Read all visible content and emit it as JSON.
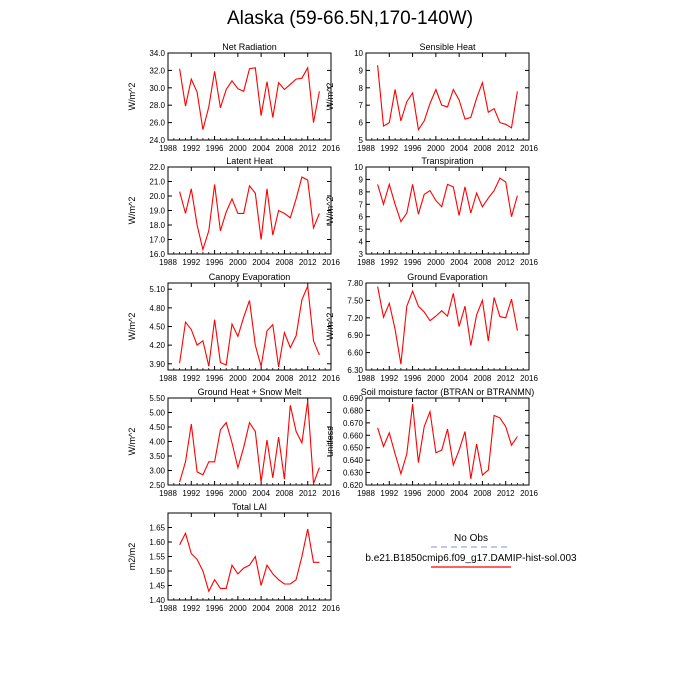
{
  "title": "Alaska (59-66.5N,170-140W)",
  "colors": {
    "line": "#ff0000",
    "obs": "#aab8e0",
    "axis": "#000000",
    "background": "#ffffff"
  },
  "legend": {
    "obs_label": "No Obs",
    "model_label": "b.e21.B1850cmip6.f09_g17.DAMIP-hist-sol.003"
  },
  "chart_data": [
    {
      "type": "line",
      "title": "Net Radiation",
      "ylabel": "W/m^2",
      "xlim": [
        1988,
        2016
      ],
      "ylim": [
        24.0,
        34.0
      ],
      "xticks": [
        1988,
        1992,
        1996,
        2000,
        2004,
        2008,
        2012,
        2016
      ],
      "xtick_labels": [
        "1988",
        "1992",
        "1996",
        "2000",
        "2004",
        "2008",
        "2012",
        "2016"
      ],
      "yticks": [
        24,
        26,
        28,
        30,
        32,
        34
      ],
      "ytick_labels": [
        "24.0",
        "26.0",
        "28.0",
        "30.0",
        "32.0",
        "34.0"
      ],
      "x": [
        1990,
        1991,
        1992,
        1993,
        1994,
        1995,
        1996,
        1997,
        1998,
        1999,
        2000,
        2001,
        2002,
        2003,
        2004,
        2005,
        2006,
        2007,
        2008,
        2009,
        2010,
        2011,
        2012,
        2013,
        2014
      ],
      "series": [
        {
          "values": [
            32.2,
            27.9,
            31.0,
            29.5,
            25.2,
            27.8,
            31.9,
            27.7,
            29.8,
            30.8,
            29.9,
            29.6,
            32.2,
            32.3,
            26.8,
            30.7,
            26.6,
            30.6,
            29.8,
            30.4,
            31.0,
            31.1,
            32.3,
            26.0,
            29.6
          ]
        }
      ]
    },
    {
      "type": "line",
      "title": "Sensible Heat",
      "ylabel": "W/m^2",
      "xlim": [
        1988,
        2016
      ],
      "ylim": [
        5,
        10
      ],
      "xticks": [
        1988,
        1992,
        1996,
        2000,
        2004,
        2008,
        2012,
        2016
      ],
      "xtick_labels": [
        "1988",
        "1992",
        "1996",
        "2000",
        "2004",
        "2008",
        "2012",
        "2016"
      ],
      "yticks": [
        5,
        6,
        7,
        8,
        9,
        10
      ],
      "ytick_labels": [
        "5",
        "6",
        "7",
        "8",
        "9",
        "10"
      ],
      "x": [
        1990,
        1991,
        1992,
        1993,
        1994,
        1995,
        1996,
        1997,
        1998,
        1999,
        2000,
        2001,
        2002,
        2003,
        2004,
        2005,
        2006,
        2007,
        2008,
        2009,
        2010,
        2011,
        2012,
        2013,
        2014
      ],
      "series": [
        {
          "values": [
            9.3,
            5.8,
            6.0,
            7.9,
            6.1,
            7.2,
            7.7,
            5.6,
            6.1,
            7.1,
            7.9,
            7.0,
            6.9,
            7.9,
            7.3,
            6.2,
            6.3,
            7.4,
            8.3,
            6.6,
            6.8,
            6.0,
            5.9,
            5.7,
            7.8
          ]
        }
      ]
    },
    {
      "type": "line",
      "title": "Latent Heat",
      "ylabel": "W/m^2",
      "xlim": [
        1988,
        2016
      ],
      "ylim": [
        16.0,
        22.0
      ],
      "xticks": [
        1988,
        1992,
        1996,
        2000,
        2004,
        2008,
        2012,
        2016
      ],
      "xtick_labels": [
        "1988",
        "1992",
        "1996",
        "2000",
        "2004",
        "2008",
        "2012",
        "2016"
      ],
      "yticks": [
        16,
        17,
        18,
        19,
        20,
        21,
        22
      ],
      "ytick_labels": [
        "16.0",
        "17.0",
        "18.0",
        "19.0",
        "20.0",
        "21.0",
        "22.0"
      ],
      "x": [
        1990,
        1991,
        1992,
        1993,
        1994,
        1995,
        1996,
        1997,
        1998,
        1999,
        2000,
        2001,
        2002,
        2003,
        2004,
        2005,
        2006,
        2007,
        2008,
        2009,
        2010,
        2011,
        2012,
        2013,
        2014
      ],
      "series": [
        {
          "values": [
            20.3,
            18.8,
            20.5,
            18.0,
            16.3,
            17.6,
            20.8,
            17.6,
            18.9,
            19.8,
            18.8,
            18.8,
            20.7,
            20.2,
            17.0,
            20.5,
            17.3,
            19.0,
            18.8,
            18.5,
            19.8,
            21.3,
            21.1,
            17.8,
            18.8
          ]
        }
      ]
    },
    {
      "type": "line",
      "title": "Transpiration",
      "ylabel": "W/m^2",
      "xlim": [
        1988,
        2016
      ],
      "ylim": [
        3,
        10
      ],
      "xticks": [
        1988,
        1992,
        1996,
        2000,
        2004,
        2008,
        2012,
        2016
      ],
      "xtick_labels": [
        "1988",
        "1992",
        "1996",
        "2000",
        "2004",
        "2008",
        "2012",
        "2016"
      ],
      "yticks": [
        3,
        4,
        5,
        6,
        7,
        8,
        9,
        10
      ],
      "ytick_labels": [
        "3",
        "4",
        "5",
        "6",
        "7",
        "8",
        "9",
        "10"
      ],
      "x": [
        1990,
        1991,
        1992,
        1993,
        1994,
        1995,
        1996,
        1997,
        1998,
        1999,
        2000,
        2001,
        2002,
        2003,
        2004,
        2005,
        2006,
        2007,
        2008,
        2009,
        2010,
        2011,
        2012,
        2013,
        2014
      ],
      "series": [
        {
          "values": [
            8.6,
            7.0,
            8.6,
            7.0,
            5.6,
            6.3,
            8.6,
            6.2,
            7.8,
            8.1,
            7.3,
            6.8,
            8.6,
            8.4,
            6.1,
            8.4,
            6.3,
            7.9,
            6.8,
            7.5,
            8.1,
            9.1,
            8.8,
            6.0,
            7.7
          ]
        }
      ]
    },
    {
      "type": "line",
      "title": "Canopy Evaporation",
      "ylabel": "W/m^2",
      "xlim": [
        1988,
        2016
      ],
      "ylim": [
        3.8,
        5.2
      ],
      "xticks": [
        1988,
        1992,
        1996,
        2000,
        2004,
        2008,
        2012,
        2016
      ],
      "xtick_labels": [
        "1988",
        "1992",
        "1996",
        "2000",
        "2004",
        "2008",
        "2012",
        "2016"
      ],
      "yticks": [
        3.9,
        4.2,
        4.5,
        4.8,
        5.1
      ],
      "ytick_labels": [
        "3.90",
        "4.20",
        "4.50",
        "4.80",
        "5.10"
      ],
      "x": [
        1990,
        1991,
        1992,
        1993,
        1994,
        1995,
        1996,
        1997,
        1998,
        1999,
        2000,
        2001,
        2002,
        2003,
        2004,
        2005,
        2006,
        2007,
        2008,
        2009,
        2010,
        2011,
        2012,
        2013,
        2014
      ],
      "series": [
        {
          "values": [
            3.91,
            4.57,
            4.45,
            4.2,
            4.27,
            3.86,
            4.61,
            3.92,
            3.88,
            4.54,
            4.34,
            4.65,
            4.92,
            4.2,
            3.86,
            4.43,
            4.53,
            3.85,
            4.4,
            4.16,
            4.35,
            4.93,
            5.15,
            4.27,
            4.04
          ]
        }
      ]
    },
    {
      "type": "line",
      "title": "Ground Evaporation",
      "ylabel": "W/m^2",
      "xlim": [
        1988,
        2016
      ],
      "ylim": [
        6.3,
        7.8
      ],
      "xticks": [
        1988,
        1992,
        1996,
        2000,
        2004,
        2008,
        2012,
        2016
      ],
      "xtick_labels": [
        "1988",
        "1992",
        "1996",
        "2000",
        "2004",
        "2008",
        "2012",
        "2016"
      ],
      "yticks": [
        6.3,
        6.6,
        6.9,
        7.2,
        7.5,
        7.8
      ],
      "ytick_labels": [
        "6.30",
        "6.60",
        "6.90",
        "7.20",
        "7.50",
        "7.80"
      ],
      "x": [
        1990,
        1991,
        1992,
        1993,
        1994,
        1995,
        1996,
        1997,
        1998,
        1999,
        2000,
        2001,
        2002,
        2003,
        2004,
        2005,
        2006,
        2007,
        2008,
        2009,
        2010,
        2011,
        2012,
        2013,
        2014
      ],
      "series": [
        {
          "values": [
            7.74,
            7.21,
            7.45,
            7.0,
            6.4,
            7.4,
            7.66,
            7.4,
            7.3,
            7.15,
            7.23,
            7.32,
            7.23,
            7.62,
            7.05,
            7.4,
            6.72,
            7.25,
            7.5,
            6.8,
            7.55,
            7.22,
            7.2,
            7.52,
            6.98
          ]
        }
      ]
    },
    {
      "type": "line",
      "title": "Ground Heat + Snow Melt",
      "ylabel": "W/m^2",
      "xlim": [
        1988,
        2016
      ],
      "ylim": [
        2.5,
        5.5
      ],
      "xticks": [
        1988,
        1992,
        1996,
        2000,
        2004,
        2008,
        2012,
        2016
      ],
      "xtick_labels": [
        "1988",
        "1992",
        "1996",
        "2000",
        "2004",
        "2008",
        "2012",
        "2016"
      ],
      "yticks": [
        2.5,
        3.0,
        3.5,
        4.0,
        4.5,
        5.0,
        5.5
      ],
      "ytick_labels": [
        "2.50",
        "3.00",
        "3.50",
        "4.00",
        "4.50",
        "5.00",
        "5.50"
      ],
      "x": [
        1990,
        1991,
        1992,
        1993,
        1994,
        1995,
        1996,
        1997,
        1998,
        1999,
        2000,
        2001,
        2002,
        2003,
        2004,
        2005,
        2006,
        2007,
        2008,
        2009,
        2010,
        2011,
        2012,
        2013,
        2014
      ],
      "series": [
        {
          "values": [
            2.6,
            3.3,
            4.6,
            2.95,
            2.85,
            3.3,
            3.3,
            4.4,
            4.65,
            3.95,
            3.1,
            3.8,
            4.65,
            4.35,
            2.6,
            4.05,
            2.75,
            4.15,
            2.7,
            5.25,
            4.35,
            3.95,
            5.4,
            2.55,
            3.1
          ]
        }
      ]
    },
    {
      "type": "line",
      "title": "Soil moisture factor (BTRAN or BTRANMN)",
      "ylabel": "unitless",
      "xlim": [
        1988,
        2016
      ],
      "ylim": [
        0.62,
        0.69
      ],
      "xticks": [
        1988,
        1992,
        1996,
        2000,
        2004,
        2008,
        2012,
        2016
      ],
      "xtick_labels": [
        "1988",
        "1992",
        "1996",
        "2000",
        "2004",
        "2008",
        "2012",
        "2016"
      ],
      "yticks": [
        0.62,
        0.63,
        0.64,
        0.65,
        0.66,
        0.67,
        0.68,
        0.69
      ],
      "ytick_labels": [
        "0.620",
        "0.630",
        "0.640",
        "0.650",
        "0.660",
        "0.670",
        "0.680",
        "0.690"
      ],
      "x": [
        1990,
        1991,
        1992,
        1993,
        1994,
        1995,
        1996,
        1997,
        1998,
        1999,
        2000,
        2001,
        2002,
        2003,
        2004,
        2005,
        2006,
        2007,
        2008,
        2009,
        2010,
        2011,
        2012,
        2013,
        2014
      ],
      "series": [
        {
          "values": [
            0.666,
            0.651,
            0.662,
            0.645,
            0.629,
            0.645,
            0.685,
            0.638,
            0.667,
            0.679,
            0.646,
            0.648,
            0.665,
            0.636,
            0.648,
            0.663,
            0.625,
            0.653,
            0.628,
            0.632,
            0.676,
            0.674,
            0.667,
            0.652,
            0.659
          ]
        }
      ]
    },
    {
      "type": "line",
      "title": "Total LAI",
      "ylabel": "m2/m2",
      "xlim": [
        1988,
        2016
      ],
      "ylim": [
        1.4,
        1.7
      ],
      "xticks": [
        1988,
        1992,
        1996,
        2000,
        2004,
        2008,
        2012,
        2016
      ],
      "xtick_labels": [
        "1988",
        "1992",
        "1996",
        "2000",
        "2004",
        "2008",
        "2012",
        "2016"
      ],
      "yticks": [
        1.4,
        1.45,
        1.5,
        1.55,
        1.6,
        1.65
      ],
      "ytick_labels": [
        "1.40",
        "1.45",
        "1.50",
        "1.55",
        "1.60",
        "1.65"
      ],
      "x": [
        1990,
        1991,
        1992,
        1993,
        1994,
        1995,
        1996,
        1997,
        1998,
        1999,
        2000,
        2001,
        2002,
        2003,
        2004,
        2005,
        2006,
        2007,
        2008,
        2009,
        2010,
        2011,
        2012,
        2013,
        2014
      ],
      "series": [
        {
          "values": [
            1.59,
            1.63,
            1.56,
            1.54,
            1.5,
            1.43,
            1.47,
            1.44,
            1.44,
            1.52,
            1.49,
            1.51,
            1.52,
            1.55,
            1.45,
            1.52,
            1.49,
            1.47,
            1.455,
            1.455,
            1.47,
            1.55,
            1.645,
            1.53,
            1.53
          ]
        }
      ]
    }
  ]
}
